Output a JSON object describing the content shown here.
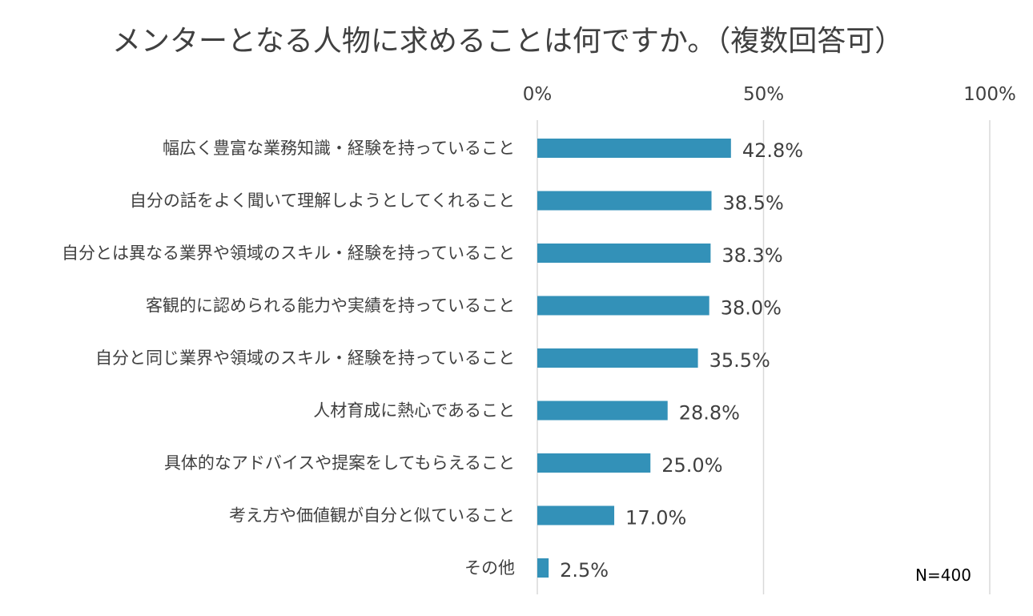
{
  "chart_data": {
    "type": "bar",
    "orientation": "horizontal",
    "title": "メンターとなる人物に求めることは何ですか。（複数回答可）",
    "categories": [
      "幅広く豊富な業務知識・経験を持っていること",
      "自分の話をよく聞いて理解しようとしてくれること",
      "自分とは異なる業界や領域のスキル・経験を持っていること",
      "客観的に認められる能力や実績を持っていること",
      "自分と同じ業界や領域のスキル・経験を持っていること",
      "人材育成に熱心であること",
      "具体的なアドバイスや提案をしてもらえること",
      "考え方や価値観が自分と似ていること",
      "その他"
    ],
    "values": [
      42.8,
      38.5,
      38.3,
      38.0,
      35.5,
      28.8,
      25.0,
      17.0,
      2.5
    ],
    "data_labels": [
      "42.8%",
      "38.5%",
      "38.3%",
      "38.0%",
      "35.5%",
      "28.8%",
      "25.0%",
      "17.0%",
      "2.5%"
    ],
    "x_ticks": [
      0,
      50,
      100
    ],
    "x_tick_labels": [
      "0%",
      "50%",
      "100%"
    ],
    "xlim": [
      0,
      100
    ],
    "x_axis_position": "top",
    "grid": true,
    "legend": "none",
    "bar_color": "#3391B8",
    "grid_color": "#D9D9D9",
    "note": "N=400"
  }
}
